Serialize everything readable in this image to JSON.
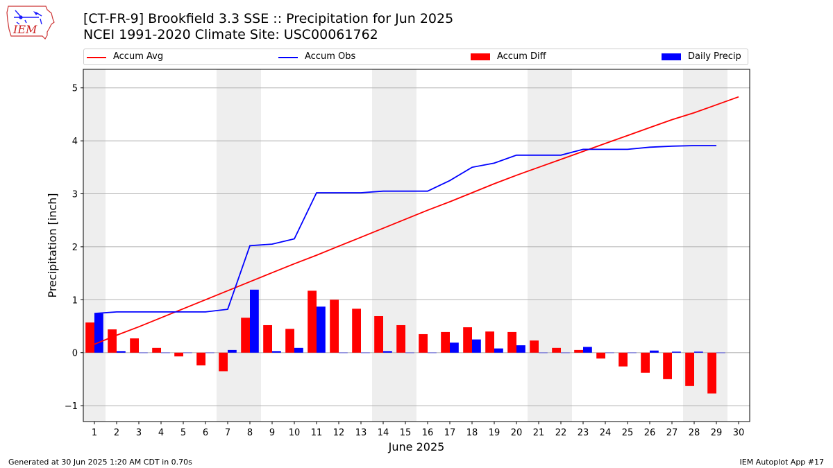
{
  "title_line1": "[CT-FR-9] Brookfield 3.3 SSE :: Precipitation for Jun 2025",
  "title_line2": "NCEI 1991-2020 Climate Site: USC00061762",
  "logo_text": "IEM",
  "footer_left": "Generated at 30 Jun 2025 1:20 AM CDT in 0.70s",
  "footer_right": "IEM Autoplot App #17",
  "colors": {
    "avg": "#ff0000",
    "obs": "#0000ff",
    "diff": "#ff0000",
    "daily": "#0000ff",
    "weekend": "#eeeeee",
    "grid": "#b0b0b0"
  },
  "legend": {
    "avg": "Accum Avg",
    "obs": "Accum Obs",
    "diff": "Accum Diff",
    "daily": "Daily Precip"
  },
  "chart_data": {
    "type": "bar",
    "xlabel": "June 2025",
    "ylabel": "Precipitation [inch]",
    "xlim": [
      0.5,
      30.5
    ],
    "ylim": [
      -1.3,
      5.35
    ],
    "yticks": [
      -1,
      0,
      1,
      2,
      3,
      4,
      5
    ],
    "grid": "horizontal",
    "legend_position": "top",
    "categories": [
      "1",
      "2",
      "3",
      "4",
      "5",
      "6",
      "7",
      "8",
      "9",
      "10",
      "11",
      "12",
      "13",
      "14",
      "15",
      "16",
      "17",
      "18",
      "19",
      "20",
      "21",
      "22",
      "23",
      "24",
      "25",
      "26",
      "27",
      "28",
      "29",
      "30"
    ],
    "weekend_days": [
      1,
      7,
      8,
      14,
      15,
      21,
      22,
      28,
      29
    ],
    "series": [
      {
        "name": "Accum Avg",
        "kind": "line",
        "values": [
          0.16,
          0.33,
          0.49,
          0.66,
          0.83,
          1.0,
          1.17,
          1.34,
          1.51,
          1.68,
          1.84,
          2.01,
          2.18,
          2.35,
          2.52,
          2.69,
          2.85,
          3.02,
          3.19,
          3.35,
          3.5,
          3.65,
          3.8,
          3.95,
          4.1,
          4.25,
          4.4,
          4.53,
          4.68,
          4.83
        ]
      },
      {
        "name": "Accum Obs",
        "kind": "line",
        "values": [
          0.74,
          0.77,
          0.77,
          0.77,
          0.77,
          0.77,
          0.82,
          2.02,
          2.05,
          2.15,
          3.02,
          3.02,
          3.02,
          3.05,
          3.05,
          3.05,
          3.25,
          3.5,
          3.58,
          3.73,
          3.73,
          3.73,
          3.84,
          3.84,
          3.84,
          3.88,
          3.9,
          3.91,
          3.91,
          null
        ]
      },
      {
        "name": "Accum Diff",
        "kind": "bar",
        "values": [
          0.57,
          0.44,
          0.27,
          0.09,
          -0.07,
          -0.24,
          -0.35,
          0.66,
          0.52,
          0.45,
          1.17,
          1.0,
          0.83,
          0.69,
          0.52,
          0.35,
          0.39,
          0.48,
          0.4,
          0.39,
          0.23,
          0.09,
          0.05,
          -0.11,
          -0.26,
          -0.38,
          -0.5,
          -0.63,
          -0.77,
          null
        ]
      },
      {
        "name": "Daily Precip",
        "kind": "bar",
        "values": [
          0.74,
          0.03,
          0.0,
          0.0,
          0.0,
          0.0,
          0.05,
          1.19,
          0.03,
          0.09,
          0.87,
          0.0,
          0.0,
          0.03,
          0.0,
          0.0,
          0.19,
          0.25,
          0.08,
          0.14,
          0.0,
          0.0,
          0.11,
          0.0,
          0.0,
          0.04,
          0.02,
          0.02,
          0.0,
          null
        ]
      }
    ]
  }
}
